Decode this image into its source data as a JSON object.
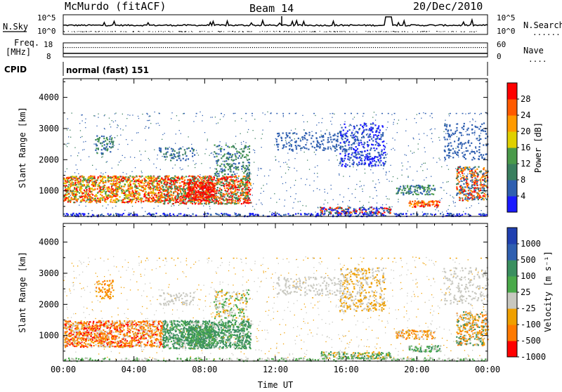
{
  "header": {
    "station": "McMurdo (fitACF)",
    "beam": "Beam 14",
    "date": "20/Dec/2010"
  },
  "noise_panel": {
    "left_label": "N.Sky",
    "right_label": "N.Search",
    "right_legend": ".........",
    "ticks_left": [
      "10^5",
      "10^0"
    ],
    "ticks_right": [
      "10^5",
      "10^0"
    ]
  },
  "freq_panel": {
    "left_label_1": "Freq.",
    "left_label_2": "[MHz]",
    "right_label": "Nave",
    "right_legend": "....",
    "ticks_left": [
      "18",
      "8"
    ],
    "ticks_right": [
      "60",
      "0"
    ]
  },
  "cpid_panel": {
    "label": "CPID",
    "mode": "normal (fast) 151"
  },
  "colors": {
    "power_scale": [
      "#1a1aff",
      "#2f5fb0",
      "#3a7f5f",
      "#4a9a4a",
      "#e0d000",
      "#ff9a00",
      "#ff5a00",
      "#ff0000"
    ],
    "velocity_scale": [
      "#2040b0",
      "#2f5fb0",
      "#3a8f5f",
      "#4aaa4a",
      "#c8c8c0",
      "#f0a000",
      "#ff7a00",
      "#ff0000"
    ]
  },
  "chart_data": [
    {
      "type": "heatmap",
      "title": "Power",
      "ylabel": "Slant Range [km]",
      "yticks": [
        "1000",
        "2000",
        "3000",
        "4000"
      ],
      "ylim": [
        180,
        4600
      ],
      "xlim_hours": [
        0,
        24
      ],
      "colorbar_label": "Power [dB]",
      "colorbar_ticks": [
        "4",
        "8",
        "12",
        "16",
        "20",
        "24",
        "28"
      ],
      "colorbar_range": [
        0,
        32
      ]
    },
    {
      "type": "heatmap",
      "title": "Velocity",
      "ylabel": "Slant Range [km]",
      "yticks": [
        "1000",
        "2000",
        "3000",
        "4000"
      ],
      "ylim": [
        180,
        4600
      ],
      "xlim_hours": [
        0,
        24
      ],
      "xticks": [
        "00:00",
        "04:00",
        "08:00",
        "12:00",
        "16:00",
        "20:00",
        "00:00"
      ],
      "xlabel": "Time UT",
      "colorbar_label": "Velocity [m s⁻¹]",
      "colorbar_ticks": [
        "1000",
        "500",
        "100",
        "25",
        "-25",
        "-100",
        "-500",
        "-1000"
      ]
    }
  ]
}
